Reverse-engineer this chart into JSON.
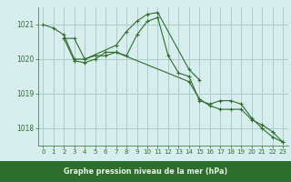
{
  "line1": {
    "x": [
      0,
      1,
      2,
      3,
      4,
      5,
      6,
      7,
      8,
      9,
      10,
      11,
      12,
      13,
      14,
      15,
      16,
      17,
      18,
      19,
      20,
      21,
      22,
      23
    ],
    "y": [
      1021.0,
      1020.9,
      1020.7,
      1020.0,
      1020.0,
      1020.1,
      1020.1,
      1020.2,
      1020.1,
      1020.7,
      1021.1,
      1021.2,
      1020.1,
      1019.6,
      1019.5,
      1018.8,
      1018.7,
      1018.8,
      1018.8,
      1018.7,
      1018.3,
      1018.0,
      1017.75,
      1017.6
    ]
  },
  "line2": {
    "x": [
      2,
      3,
      4,
      7,
      8,
      9,
      10,
      11,
      14,
      15
    ],
    "y": [
      1020.6,
      1020.6,
      1020.0,
      1020.4,
      1020.8,
      1021.1,
      1021.3,
      1021.35,
      1019.7,
      1019.4
    ]
  },
  "line3": {
    "x": [
      2,
      3,
      4,
      5,
      6,
      7,
      14,
      15,
      16,
      17,
      18,
      19,
      20,
      21,
      22,
      23
    ],
    "y": [
      1020.6,
      1019.95,
      1019.9,
      1020.0,
      1020.2,
      1020.2,
      1019.35,
      1018.85,
      1018.65,
      1018.55,
      1018.55,
      1018.55,
      1018.25,
      1018.1,
      1017.9,
      1017.6
    ]
  },
  "bg_color": "#d8eeee",
  "grid_color": "#aacccc",
  "line_color": "#2d6e2d",
  "xlabel": "Graphe pression niveau de la mer (hPa)",
  "ylim": [
    1017.5,
    1021.5
  ],
  "yticks": [
    1018,
    1019,
    1020,
    1021
  ],
  "xticks": [
    0,
    1,
    2,
    3,
    4,
    5,
    6,
    7,
    8,
    9,
    10,
    11,
    12,
    13,
    14,
    15,
    16,
    17,
    18,
    19,
    20,
    21,
    22,
    23
  ],
  "tick_color": "#2d6e2d",
  "bottom_bar_color": "#2d6e2d",
  "bottom_bar_text_color": "#e8f4e8"
}
